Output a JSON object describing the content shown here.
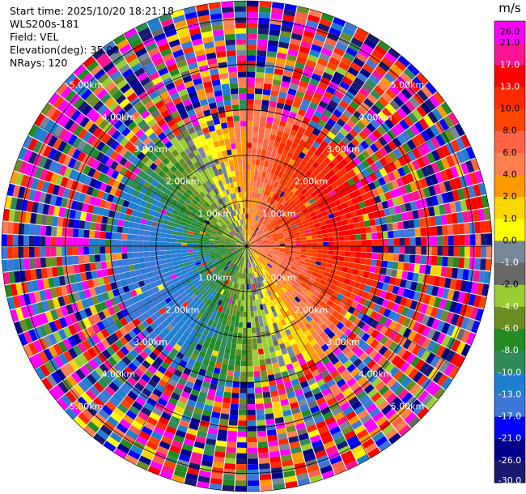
{
  "header": {
    "start_time": "Start time: 2025/10/20 18:21:18",
    "site": "WLS200s-181",
    "field": "Field: VEL",
    "elevation": "Elevation(deg): 35.00",
    "nrays": "NRays: 120"
  },
  "chart_data": {
    "type": "heatmap",
    "projection": "polar-ppi",
    "field": "VEL",
    "unit": "m/s",
    "n_rays": 120,
    "max_range_km": 5.4,
    "range_rings_km": [
      1.0,
      2.0,
      3.0,
      4.0,
      5.0
    ],
    "range_ring_labels": [
      "1.00km",
      "2.00km",
      "3.00km",
      "4.00km",
      "5.00km"
    ],
    "flow_direction_from_deg": 250,
    "clean_data_extent_km": 2.6,
    "noise_starts_km": 3.0,
    "colorbar": {
      "title": "m/s",
      "ticks": [
        "26.0",
        "21.0",
        "17.0",
        "13.0",
        "10.0",
        "8.0",
        "6.0",
        "4.0",
        "2.0",
        "1.0",
        "0.0",
        "-1.0",
        "-2.0",
        "-4.0",
        "-6.0",
        "-8.0",
        "-10.0",
        "-13.0",
        "-17.0",
        "-21.0",
        "-26.0",
        "-30.0"
      ],
      "colors": [
        "#ff00ff",
        "#ff1493",
        "#ff0000",
        "#ff2a00",
        "#ff4500",
        "#ff6347",
        "#ff7f50",
        "#ff9900",
        "#ffd700",
        "#ffff00",
        "#778899",
        "#696969",
        "#9acd32",
        "#6b8e23",
        "#228b22",
        "#2e8b57",
        "#1e7fd0",
        "#3c78d8",
        "#0000ff",
        "#00008b",
        "#191970"
      ]
    }
  }
}
